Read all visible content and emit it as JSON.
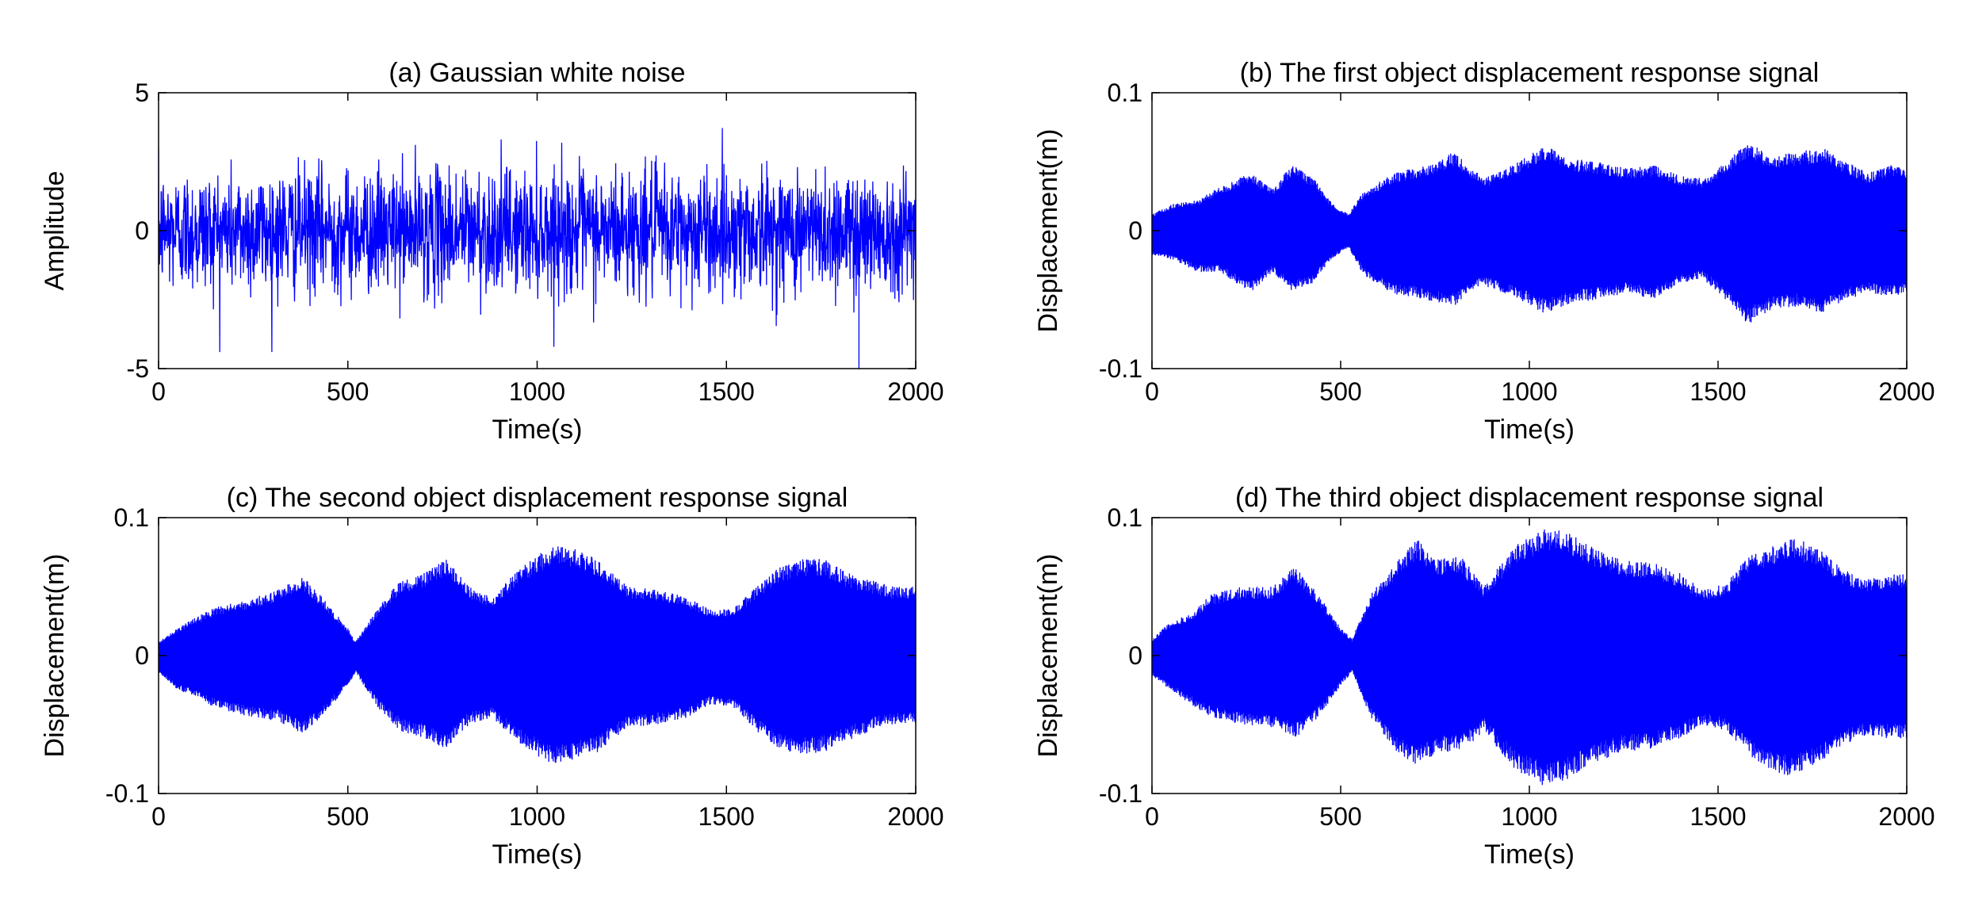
{
  "figure": {
    "signal_color": "#0000ff",
    "axis_color": "#000000",
    "background": "#ffffff"
  },
  "chart_data": [
    {
      "id": "a",
      "type": "line",
      "title": "(a) Gaussian white noise",
      "xlabel": "Time(s)",
      "ylabel": "Amplitude",
      "xlim": [
        0,
        2000
      ],
      "ylim": [
        -5,
        5
      ],
      "xticks": [
        "0",
        "500",
        "1000",
        "1500",
        "2000"
      ],
      "yticks": [
        "5",
        "0",
        "-5"
      ],
      "grid": false,
      "legend": "none",
      "series": [
        {
          "signal": "white-noise",
          "approx_upper_envelope": {
            "x": [
              0,
              250,
              500,
              750,
              1000,
              1250,
              1500,
              1750,
              2000
            ],
            "y": [
              2.6,
              2.7,
              2.6,
              2.7,
              2.6,
              2.7,
              2.6,
              2.7,
              2.6
            ]
          },
          "approx_lower_envelope": {
            "x": [
              0,
              250,
              500,
              750,
              1000,
              1250,
              1500,
              1750,
              2000
            ],
            "y": [
              -2.6,
              -2.7,
              -2.6,
              -2.7,
              -2.6,
              -2.7,
              -2.6,
              -2.7,
              -2.6
            ]
          },
          "peak_max": 4.1,
          "peak_min": -5.0
        }
      ]
    },
    {
      "id": "b",
      "type": "line",
      "title": "(b) The first object displacement response signal",
      "xlabel": "Time(s)",
      "ylabel": "Displacement(m)",
      "xlim": [
        0,
        2000
      ],
      "ylim": [
        -0.1,
        0.1
      ],
      "xticks": [
        "0",
        "500",
        "1000",
        "1500",
        "2000"
      ],
      "yticks": [
        "0.1",
        "0",
        "-0.1"
      ],
      "grid": false,
      "legend": "none",
      "series": [
        {
          "signal": "displacement-response",
          "approx_upper_envelope": {
            "x": [
              0,
              60,
              120,
              180,
              260,
              320,
              370,
              430,
              470,
              520,
              560,
              640,
              720,
              800,
              840,
              880,
              960,
              1040,
              1120,
              1180,
              1260,
              1330,
              1400,
              1460,
              1520,
              1580,
              1640,
              1700,
              1780,
              1840,
              1900,
              1960,
              2000
            ],
            "y": [
              0.012,
              0.02,
              0.022,
              0.032,
              0.042,
              0.03,
              0.048,
              0.038,
              0.022,
              0.012,
              0.028,
              0.042,
              0.047,
              0.057,
              0.047,
              0.038,
              0.048,
              0.062,
              0.052,
              0.05,
              0.045,
              0.048,
              0.04,
              0.038,
              0.05,
              0.065,
              0.055,
              0.057,
              0.06,
              0.05,
              0.042,
              0.048,
              0.045
            ]
          },
          "approx_lower_envelope": {
            "x": [
              0,
              60,
              120,
              180,
              260,
              320,
              370,
              430,
              470,
              520,
              560,
              640,
              720,
              800,
              840,
              880,
              960,
              1040,
              1120,
              1180,
              1260,
              1330,
              1400,
              1460,
              1520,
              1580,
              1640,
              1700,
              1780,
              1840,
              1900,
              1960,
              2000
            ],
            "y": [
              -0.018,
              -0.022,
              -0.03,
              -0.03,
              -0.045,
              -0.03,
              -0.044,
              -0.038,
              -0.022,
              -0.012,
              -0.032,
              -0.046,
              -0.05,
              -0.055,
              -0.045,
              -0.04,
              -0.048,
              -0.06,
              -0.052,
              -0.05,
              -0.045,
              -0.05,
              -0.038,
              -0.035,
              -0.05,
              -0.068,
              -0.058,
              -0.055,
              -0.06,
              -0.05,
              -0.045,
              -0.048,
              -0.045
            ]
          }
        }
      ]
    },
    {
      "id": "c",
      "type": "line",
      "title": "(c) The second object displacement response signal",
      "xlabel": "Time(s)",
      "ylabel": "Displacement(m)",
      "xlim": [
        0,
        2000
      ],
      "ylim": [
        -0.1,
        0.1
      ],
      "xticks": [
        "0",
        "500",
        "1000",
        "1500",
        "2000"
      ],
      "yticks": [
        "0.1",
        "0",
        "-0.1"
      ],
      "grid": false,
      "legend": "none",
      "series": [
        {
          "signal": "displacement-response",
          "approx_upper_envelope": {
            "x": [
              0,
              50,
              100,
              150,
              250,
              320,
              380,
              440,
              500,
              520,
              580,
              640,
              700,
              760,
              820,
              880,
              960,
              1040,
              1100,
              1160,
              1240,
              1320,
              1400,
              1460,
              1520,
              1580,
              1640,
              1700,
              1760,
              1820,
              1880,
              1940,
              2000
            ],
            "y": [
              0.01,
              0.02,
              0.028,
              0.035,
              0.042,
              0.048,
              0.058,
              0.04,
              0.02,
              0.01,
              0.035,
              0.055,
              0.06,
              0.07,
              0.05,
              0.042,
              0.065,
              0.08,
              0.078,
              0.07,
              0.05,
              0.048,
              0.042,
              0.033,
              0.035,
              0.05,
              0.065,
              0.07,
              0.07,
              0.06,
              0.055,
              0.05,
              0.05
            ]
          },
          "approx_lower_envelope": {
            "x": [
              0,
              50,
              100,
              150,
              250,
              320,
              380,
              440,
              500,
              520,
              580,
              640,
              700,
              760,
              820,
              880,
              960,
              1040,
              1100,
              1160,
              1240,
              1320,
              1400,
              1460,
              1520,
              1580,
              1640,
              1700,
              1760,
              1820,
              1880,
              1940,
              2000
            ],
            "y": [
              -0.012,
              -0.025,
              -0.03,
              -0.038,
              -0.045,
              -0.048,
              -0.058,
              -0.042,
              -0.022,
              -0.012,
              -0.038,
              -0.055,
              -0.06,
              -0.068,
              -0.05,
              -0.045,
              -0.065,
              -0.08,
              -0.075,
              -0.07,
              -0.052,
              -0.05,
              -0.045,
              -0.035,
              -0.038,
              -0.055,
              -0.068,
              -0.072,
              -0.07,
              -0.062,
              -0.055,
              -0.05,
              -0.05
            ]
          }
        }
      ]
    },
    {
      "id": "d",
      "type": "line",
      "title": "(d) The third object displacement response signal",
      "xlabel": "Time(s)",
      "ylabel": "Displacement(m)",
      "xlim": [
        0,
        2000
      ],
      "ylim": [
        -0.1,
        0.1
      ],
      "xticks": [
        "0",
        "500",
        "1000",
        "1500",
        "2000"
      ],
      "yticks": [
        "0.1",
        "0",
        "-0.1"
      ],
      "grid": false,
      "legend": "none",
      "series": [
        {
          "signal": "displacement-response",
          "approx_upper_envelope": {
            "x": [
              0,
              50,
              100,
              160,
              240,
              320,
              380,
              440,
              500,
              530,
              580,
              640,
              700,
              760,
              820,
              880,
              960,
              1040,
              1100,
              1160,
              1240,
              1320,
              1400,
              1460,
              1520,
              1580,
              1640,
              1700,
              1760,
              1820,
              1880,
              1940,
              2000
            ],
            "y": [
              0.012,
              0.025,
              0.03,
              0.045,
              0.05,
              0.05,
              0.065,
              0.045,
              0.02,
              0.012,
              0.045,
              0.065,
              0.085,
              0.07,
              0.072,
              0.05,
              0.08,
              0.092,
              0.09,
              0.08,
              0.07,
              0.068,
              0.06,
              0.048,
              0.052,
              0.072,
              0.08,
              0.085,
              0.08,
              0.065,
              0.055,
              0.058,
              0.06
            ]
          },
          "approx_lower_envelope": {
            "x": [
              0,
              50,
              100,
              160,
              240,
              320,
              380,
              440,
              500,
              530,
              580,
              640,
              700,
              760,
              820,
              880,
              960,
              1040,
              1100,
              1160,
              1240,
              1320,
              1400,
              1460,
              1520,
              1580,
              1640,
              1700,
              1760,
              1820,
              1880,
              1940,
              2000
            ],
            "y": [
              -0.015,
              -0.025,
              -0.035,
              -0.045,
              -0.05,
              -0.052,
              -0.06,
              -0.045,
              -0.022,
              -0.012,
              -0.045,
              -0.068,
              -0.08,
              -0.07,
              -0.07,
              -0.055,
              -0.082,
              -0.095,
              -0.09,
              -0.08,
              -0.07,
              -0.068,
              -0.06,
              -0.05,
              -0.055,
              -0.072,
              -0.085,
              -0.088,
              -0.08,
              -0.068,
              -0.058,
              -0.06,
              -0.06
            ]
          }
        }
      ]
    }
  ]
}
